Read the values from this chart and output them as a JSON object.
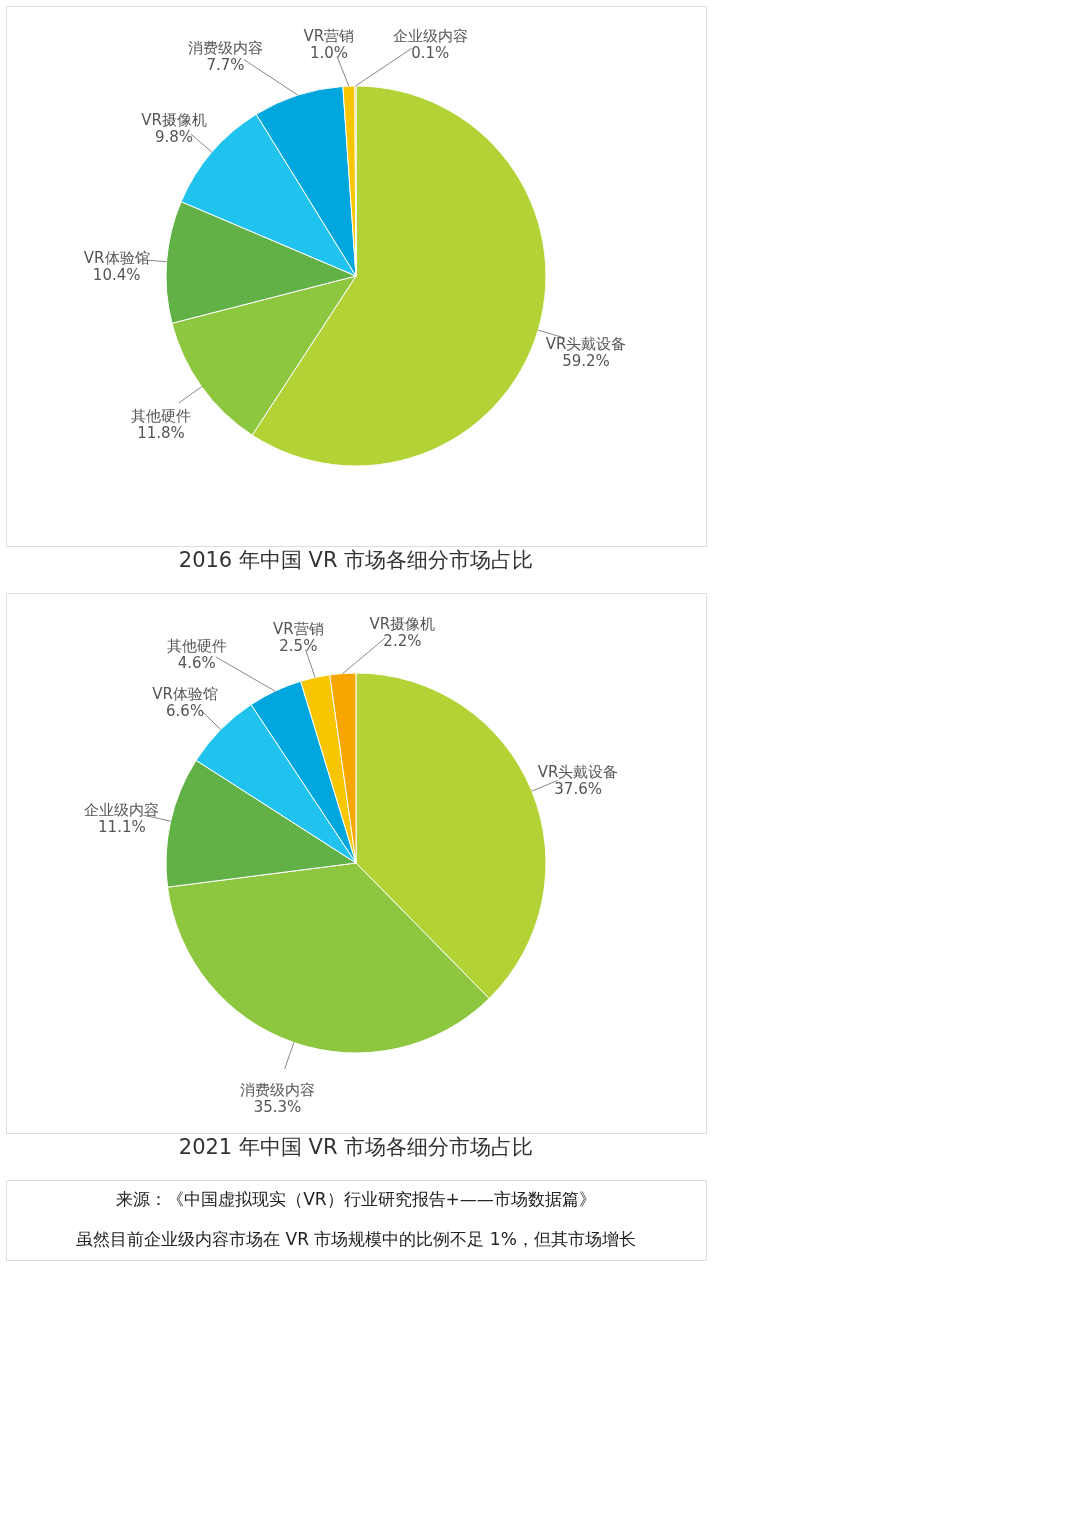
{
  "chart_data": [
    {
      "type": "pie",
      "title": "2016 年中国 VR 市场各细分市场占比",
      "categories": [
        "VR头戴设备",
        "其他硬件",
        "VR体验馆",
        "VR摄像机",
        "消费级内容",
        "VR营销",
        "企业级内容"
      ],
      "values": [
        59.2,
        11.8,
        10.4,
        9.8,
        7.7,
        1.0,
        0.1
      ],
      "value_labels": [
        "59.2%",
        "11.8%",
        "10.4%",
        "9.8%",
        "7.7%",
        "1.0%",
        "0.1%"
      ],
      "colors": [
        "#b2d235",
        "#8dc63f",
        "#62b146",
        "#1fc3ee",
        "#00a6de",
        "#f7c600",
        "#f7a600"
      ],
      "legend": false
    },
    {
      "type": "pie",
      "title": "2021 年中国 VR 市场各细分市场占比",
      "categories": [
        "VR头戴设备",
        "消费级内容",
        "企业级内容",
        "VR体验馆",
        "其他硬件",
        "VR营销",
        "VR摄像机"
      ],
      "values": [
        37.6,
        35.3,
        11.1,
        6.6,
        4.6,
        2.5,
        2.2
      ],
      "value_labels": [
        "37.6%",
        "35.3%",
        "11.1%",
        "6.6%",
        "4.6%",
        "2.5%",
        "2.2%"
      ],
      "colors": [
        "#b2d235",
        "#8dc63f",
        "#62b146",
        "#1fc3ee",
        "#00a6de",
        "#f7c600",
        "#f7a600"
      ],
      "legend": false,
      "annotations": [
        "来源：《中国虚拟现实（VR）行业研究报告+——市场数据篇》",
        "虽然目前企业级内容市场在 VR 市场规模中的比例不足 1%，但其市场增长"
      ]
    }
  ]
}
